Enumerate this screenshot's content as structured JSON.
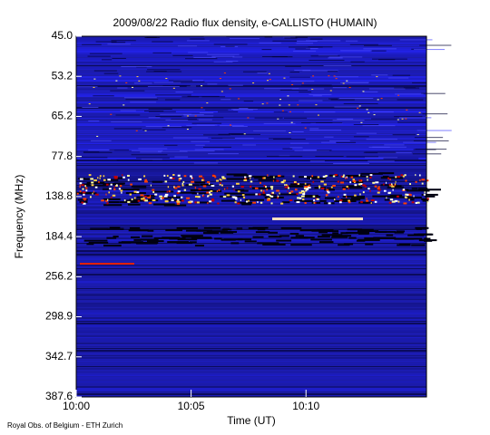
{
  "chart_data": {
    "type": "spectrogram",
    "title": "2009/08/22  Radio flux density, e-CALLISTO (HUMAIN)",
    "x_label": "Time (UT)",
    "y_label": "Frequency (MHz)",
    "xticks": [
      "10:00",
      "10:05",
      "10:10"
    ],
    "yticks": [
      "45.0",
      "53.2",
      "65.2",
      "77.8",
      "138.8",
      "184.4",
      "256.2",
      "298.9",
      "342.7",
      "387.6"
    ],
    "footer": "Royal Obs. of Belgium - ETH Zurich"
  }
}
